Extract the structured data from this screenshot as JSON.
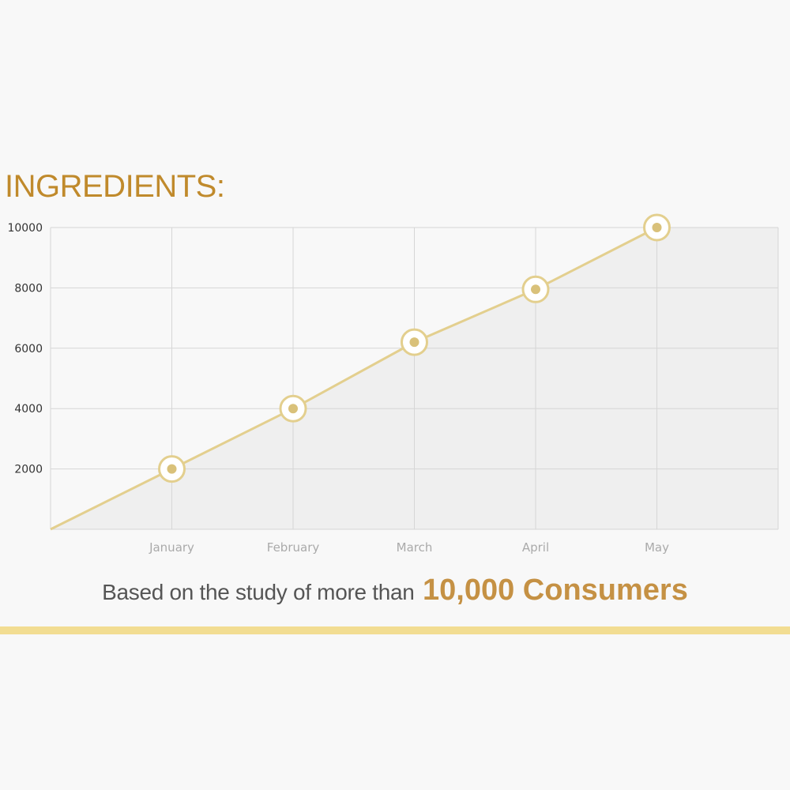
{
  "heading": "INGREDIENTS:",
  "caption": {
    "text": "Based on the study of more than",
    "highlight": "10,000 Consumers"
  },
  "colors": {
    "heading": "#c08a2c",
    "line": "#e3cf8e",
    "marker_fill": "#d9c17a",
    "grid": "#d6d6d6",
    "area": "#efefef",
    "tick_label": "#aaaaaa",
    "y_tick_label": "#333333",
    "highlight": "#c59144",
    "bottom_bar": "#f2dd92"
  },
  "chart_data": {
    "type": "line",
    "categories": [
      "January",
      "February",
      "March",
      "April",
      "May"
    ],
    "x_origin": 0,
    "series": [
      {
        "values": [
          2000,
          4000,
          6200,
          7950,
          10000
        ]
      }
    ],
    "ylim": [
      0,
      10000
    ],
    "yticks": [
      2000,
      4000,
      6000,
      8000,
      10000
    ],
    "grid": true,
    "area_fill": true,
    "title": "",
    "xlabel": "",
    "ylabel": ""
  }
}
